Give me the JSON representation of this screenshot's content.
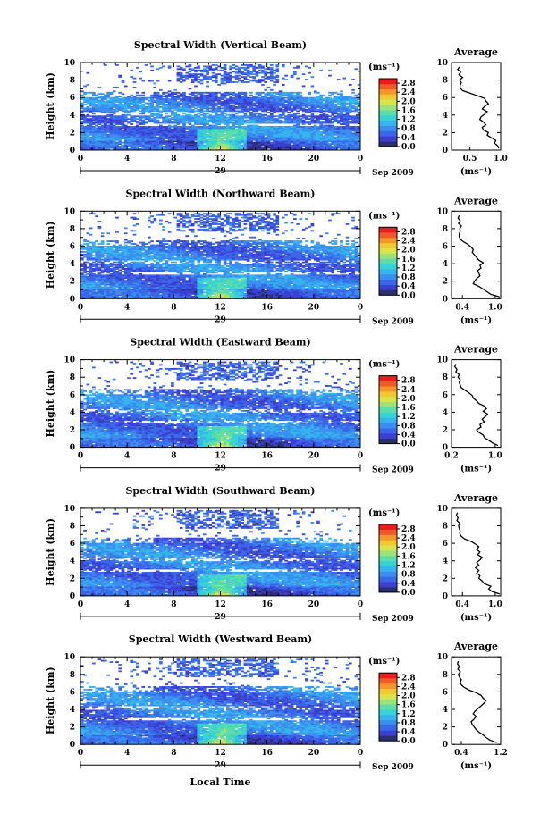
{
  "chart_data": {
    "type": "heatmap",
    "shared": {
      "xlabel": "Local Time",
      "ylabel": "Height (km)",
      "x_ticks": [
        "0",
        "4",
        "8",
        "12",
        "16",
        "20",
        "0"
      ],
      "xlim": [
        0,
        24
      ],
      "y_ticks": [
        "0",
        "2",
        "4",
        "6",
        "8",
        "10"
      ],
      "ylim": [
        0,
        10
      ],
      "day_label": "29",
      "date_label": "Sep 2009",
      "colorbar_unit": "(ms⁻¹)",
      "colorbar_ticks": [
        "0.0",
        "0.4",
        "0.8",
        "1.2",
        "1.6",
        "2.0",
        "2.4",
        "2.8"
      ],
      "colorbar_range": [
        0,
        3.0
      ],
      "colormap": [
        "#2a2f6e",
        "#3d3fd0",
        "#3a66e8",
        "#3b8ef0",
        "#35b4ee",
        "#37d2d6",
        "#5bdca8",
        "#9be27a",
        "#d8e44a",
        "#f2c832",
        "#f6952a",
        "#f05a26",
        "#e81e1e"
      ],
      "average_title": "Average",
      "average_ylabel_ticks": [
        "0",
        "2",
        "4",
        "6",
        "8",
        "10"
      ]
    },
    "panels": [
      {
        "title": "Spectral Width (Vertical Beam)",
        "avg_x_ticks": [
          "0.5",
          "1.0"
        ],
        "avg_xlim": [
          0.2,
          1.0
        ],
        "avg_profile": {
          "height": [
            0.2,
            0.5,
            0.8,
            1.1,
            1.4,
            1.7,
            2.0,
            2.3,
            2.6,
            2.9,
            3.2,
            3.5,
            3.8,
            4.1,
            4.4,
            4.7,
            5.0,
            5.3,
            5.6,
            5.9,
            6.2,
            6.5,
            6.8,
            7.1,
            7.4,
            7.7,
            8.0,
            8.3,
            8.6,
            8.9,
            9.2,
            9.5
          ],
          "width": [
            0.97,
            0.95,
            0.9,
            0.92,
            0.85,
            0.78,
            0.8,
            0.72,
            0.7,
            0.76,
            0.72,
            0.66,
            0.68,
            0.74,
            0.78,
            0.7,
            0.74,
            0.8,
            0.76,
            0.74,
            0.62,
            0.5,
            0.38,
            0.34,
            0.34,
            0.36,
            0.33,
            0.38,
            0.32,
            0.35,
            0.3,
            0.33
          ]
        },
        "coverage_seed": 11
      },
      {
        "title": "Spectral Width (Northward Beam)",
        "avg_x_ticks": [
          "0.4",
          "1.0"
        ],
        "avg_xlim": [
          0.2,
          1.1
        ],
        "avg_profile": {
          "height": [
            0.2,
            0.5,
            0.8,
            1.1,
            1.4,
            1.7,
            2.0,
            2.3,
            2.6,
            2.9,
            3.2,
            3.5,
            3.8,
            4.1,
            4.4,
            4.7,
            5.0,
            5.3,
            5.6,
            5.9,
            6.2,
            6.5,
            6.8,
            7.1,
            7.4,
            7.7,
            8.0,
            8.3,
            8.6,
            8.9,
            9.2,
            9.5
          ],
          "width": [
            1.08,
            0.92,
            0.85,
            0.78,
            0.7,
            0.6,
            0.62,
            0.66,
            0.72,
            0.7,
            0.68,
            0.74,
            0.72,
            0.78,
            0.7,
            0.66,
            0.62,
            0.58,
            0.6,
            0.56,
            0.5,
            0.42,
            0.36,
            0.34,
            0.34,
            0.36,
            0.35,
            0.38,
            0.33,
            0.36,
            0.32,
            0.34
          ]
        },
        "coverage_seed": 23
      },
      {
        "title": "Spectral Width (Eastward Beam)",
        "avg_x_ticks": [
          "0.2",
          "1.0"
        ],
        "avg_xlim": [
          0.2,
          1.1
        ],
        "avg_profile": {
          "height": [
            0.2,
            0.5,
            0.8,
            1.1,
            1.4,
            1.7,
            2.0,
            2.3,
            2.6,
            2.9,
            3.2,
            3.5,
            3.8,
            4.1,
            4.4,
            4.7,
            5.0,
            5.3,
            5.6,
            5.9,
            6.2,
            6.5,
            6.8,
            7.1,
            7.4,
            7.7,
            8.0,
            8.3,
            8.6,
            8.9,
            9.2,
            9.5
          ],
          "width": [
            1.05,
            0.95,
            0.88,
            0.8,
            0.78,
            0.7,
            0.66,
            0.74,
            0.72,
            0.8,
            0.76,
            0.82,
            0.86,
            0.78,
            0.84,
            0.8,
            0.7,
            0.66,
            0.6,
            0.58,
            0.52,
            0.45,
            0.38,
            0.36,
            0.34,
            0.36,
            0.32,
            0.34,
            0.28,
            0.3,
            0.26,
            0.28
          ]
        },
        "coverage_seed": 37
      },
      {
        "title": "Spectral Width (Southward Beam)",
        "avg_x_ticks": [
          "0.4",
          "1.0"
        ],
        "avg_xlim": [
          0.2,
          1.1
        ],
        "avg_profile": {
          "height": [
            0.2,
            0.5,
            0.8,
            1.1,
            1.4,
            1.7,
            2.0,
            2.3,
            2.6,
            2.9,
            3.2,
            3.5,
            3.8,
            4.1,
            4.4,
            4.7,
            5.0,
            5.3,
            5.6,
            5.9,
            6.2,
            6.5,
            6.8,
            7.1,
            7.4,
            7.7,
            8.0,
            8.3,
            8.6,
            8.9,
            9.2,
            9.5
          ],
          "width": [
            1.08,
            0.94,
            0.88,
            0.92,
            0.8,
            0.76,
            0.7,
            0.72,
            0.66,
            0.7,
            0.64,
            0.7,
            0.66,
            0.72,
            0.76,
            0.68,
            0.72,
            0.66,
            0.7,
            0.64,
            0.56,
            0.44,
            0.38,
            0.35,
            0.36,
            0.34,
            0.33,
            0.35,
            0.3,
            0.32,
            0.29,
            0.31
          ]
        },
        "coverage_seed": 53
      },
      {
        "title": "Spectral Width (Westward Beam)",
        "avg_x_ticks": [
          "0.4",
          "1.2"
        ],
        "avg_xlim": [
          0.2,
          1.2
        ],
        "avg_profile": {
          "height": [
            0.2,
            0.5,
            0.8,
            1.1,
            1.4,
            1.7,
            2.0,
            2.3,
            2.6,
            2.9,
            3.2,
            3.5,
            3.8,
            4.1,
            4.4,
            4.7,
            5.0,
            5.3,
            5.6,
            5.9,
            6.2,
            6.5,
            6.8,
            7.1,
            7.4,
            7.7,
            8.0,
            8.3,
            8.6,
            8.9,
            9.2,
            9.5
          ],
          "width": [
            1.12,
            0.98,
            0.9,
            0.84,
            0.76,
            0.7,
            0.66,
            0.62,
            0.6,
            0.66,
            0.7,
            0.64,
            0.68,
            0.74,
            0.8,
            0.86,
            0.9,
            0.84,
            0.8,
            0.7,
            0.56,
            0.46,
            0.4,
            0.38,
            0.4,
            0.36,
            0.34,
            0.38,
            0.33,
            0.36,
            0.32,
            0.34
          ]
        },
        "coverage_seed": 71
      }
    ]
  }
}
